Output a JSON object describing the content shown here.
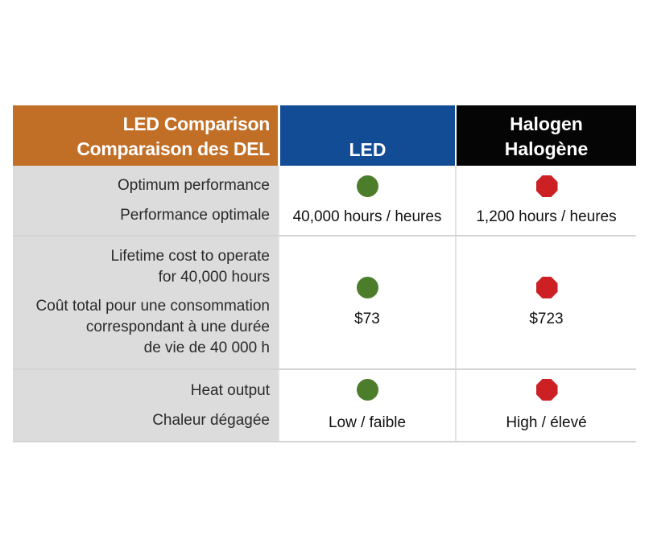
{
  "header": {
    "col1_line1": "LED Comparison",
    "col1_line2": "Comparaison des DEL",
    "col2": "LED",
    "col3_line1": "Halogen",
    "col3_line2": "Halogène"
  },
  "rows": [
    {
      "label_line1": "Optimum performance",
      "label_line2": "Performance optimale",
      "led_status": "good",
      "halogen_status": "bad",
      "led_value": "40,000 hours / heures",
      "halogen_value": "1,200 hours / heures"
    },
    {
      "label_line1": "Lifetime cost to operate",
      "label_line2": "for 40,000 hours",
      "label_line3": "Coût total pour une consommation",
      "label_line4": "correspondant à une durée",
      "label_line5": "de vie de 40 000 h",
      "led_status": "good",
      "halogen_status": "bad",
      "led_value": "$73",
      "halogen_value": "$723"
    },
    {
      "label_line1": "Heat output",
      "label_line2": "Chaleur dégagée",
      "led_status": "good",
      "halogen_status": "bad",
      "led_value": "Low / faible",
      "halogen_value": "High / élevé"
    }
  ],
  "colors": {
    "header_label": "#c16e26",
    "header_led": "#114c94",
    "header_halogen": "#050505",
    "good": "#4b7d2a",
    "bad": "#cc2025"
  },
  "icons": {
    "good": "green-circle-icon",
    "bad": "red-octagon-icon"
  }
}
